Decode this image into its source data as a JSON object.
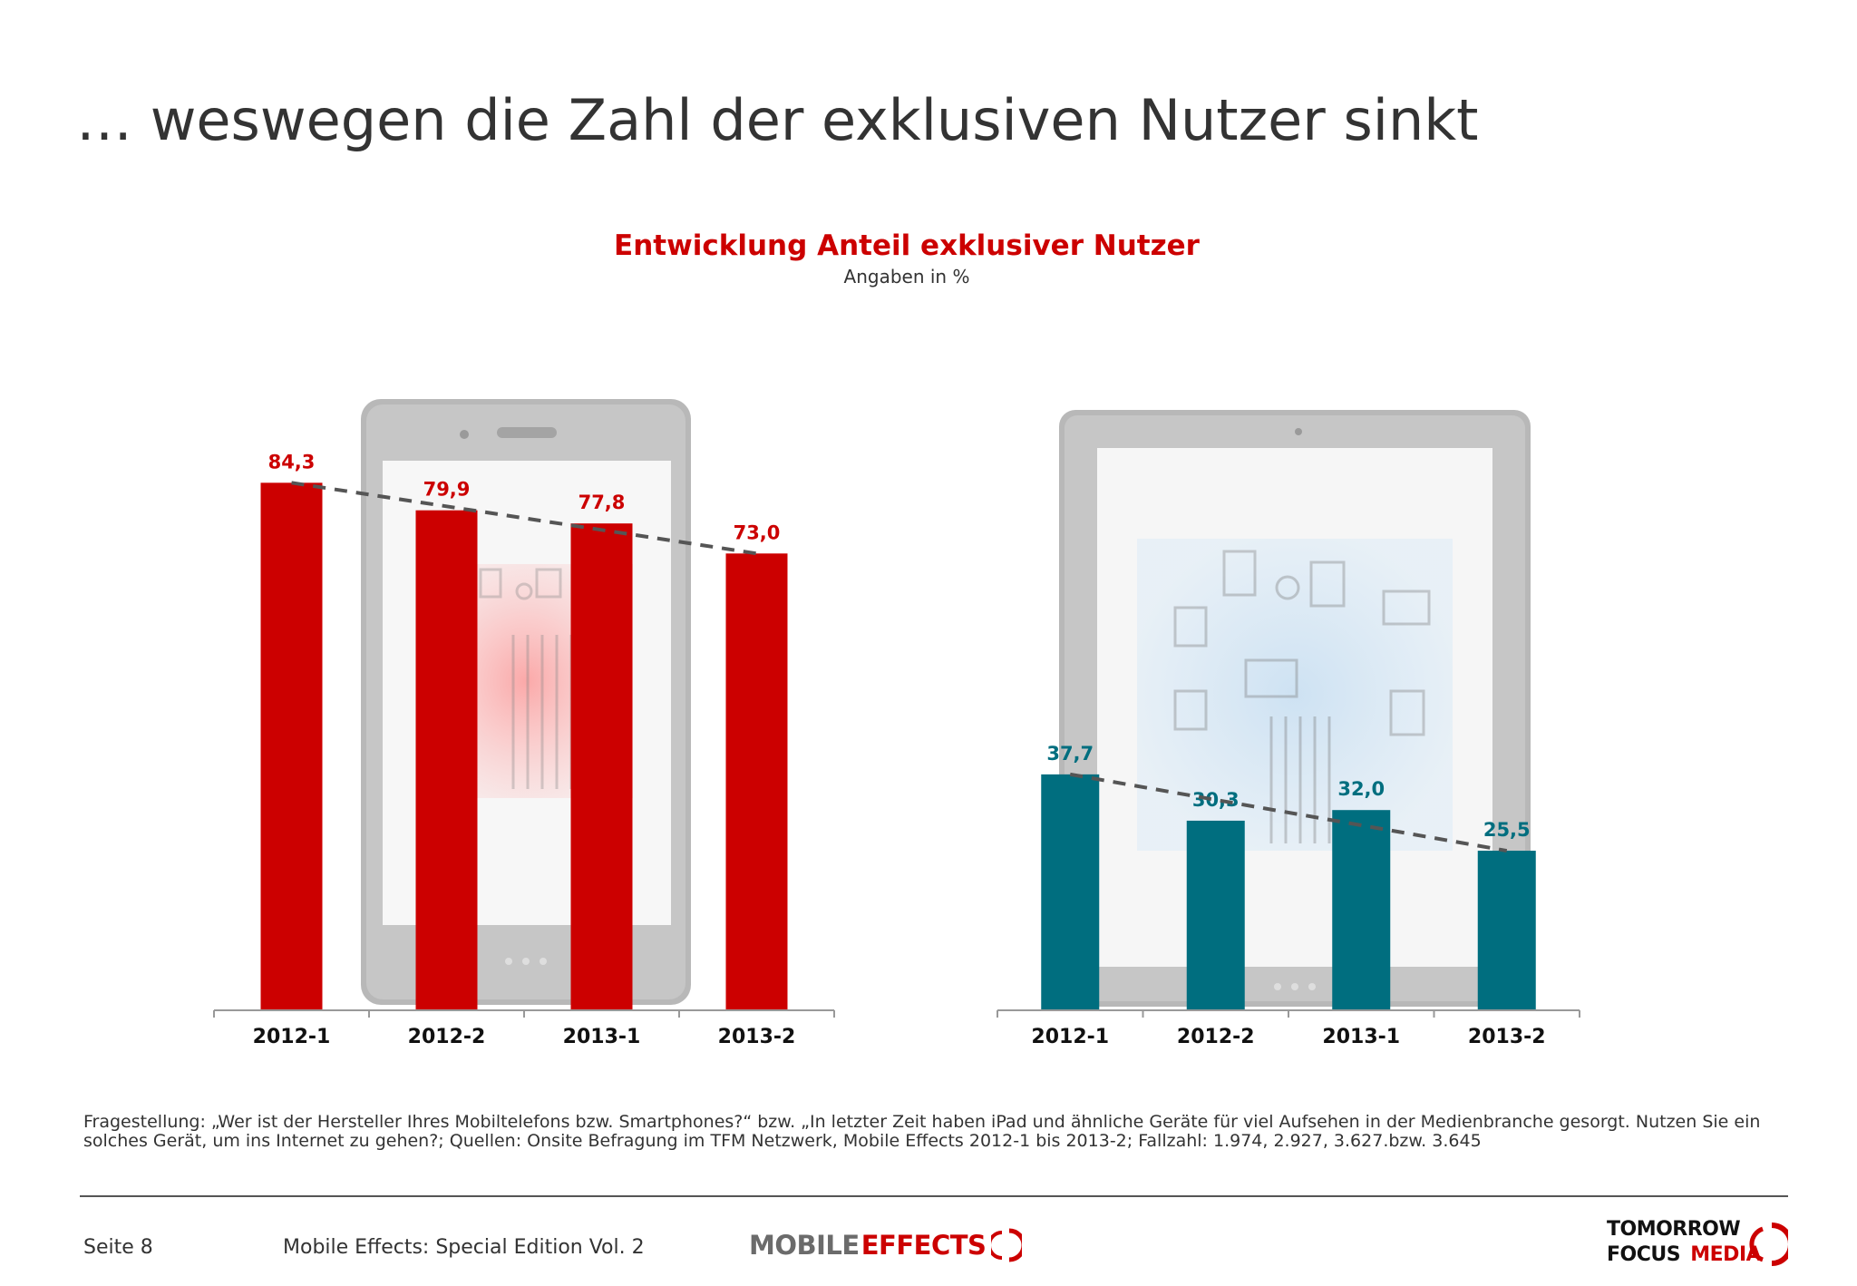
{
  "page": {
    "title": "… weswegen die Zahl der exklusiven Nutzer sinkt",
    "chart_title": "Entwicklung Anteil exklusiver Nutzer",
    "chart_subtitle": "Angaben in %"
  },
  "chart_data": [
    {
      "type": "bar",
      "categories": [
        "2012-1",
        "2012-2",
        "2013-1",
        "2013-2"
      ],
      "values": [
        84.3,
        79.9,
        77.8,
        73.0
      ],
      "value_labels": [
        "84,3",
        "79,9",
        "77,8",
        "73,0"
      ],
      "color": "#cc0000",
      "trendline": {
        "style": "dashed",
        "color": "#555555",
        "from": 84.3,
        "to": 73.0
      },
      "background_icon": "smartphone-icon"
    },
    {
      "type": "bar",
      "categories": [
        "2012-1",
        "2012-2",
        "2013-1",
        "2013-2"
      ],
      "values": [
        37.7,
        30.3,
        32.0,
        25.5
      ],
      "value_labels": [
        "37,7",
        "30,3",
        "32,0",
        "25,5"
      ],
      "color": "#006e7f",
      "trendline": {
        "style": "dashed",
        "color": "#555555",
        "from": 37.7,
        "to": 25.5
      },
      "background_icon": "tablet-icon"
    }
  ],
  "footnote": "Fragestellung: „Wer ist der Hersteller Ihres Mobiltelefons bzw. Smartphones?“ bzw. „In letzter Zeit haben iPad und ähnliche Geräte für viel Aufsehen in der Medienbranche gesorgt. Nutzen Sie ein solches Gerät, um ins Internet zu gehen?; Quellen: Onsite Befragung im TFM Netzwerk, Mobile Effects 2012-1 bis 2013-2; Fallzahl: 1.974, 2.927, 3.627.bzw. 3.645",
  "footer": {
    "page_label": "Seite 8",
    "publication": "Mobile Effects: Special Edition Vol. 2",
    "logo_mobile_effects": {
      "word1": "MOBILE",
      "word2": "EFFECTS"
    },
    "logo_tfm": {
      "line1": "TOMORROW",
      "line2a": "FOCUS",
      "line2b": "MEDIA"
    }
  },
  "colors": {
    "accent_red": "#cc0000",
    "teal": "#006e7f",
    "text": "#333333",
    "device_gray": "#b3b3b3"
  }
}
